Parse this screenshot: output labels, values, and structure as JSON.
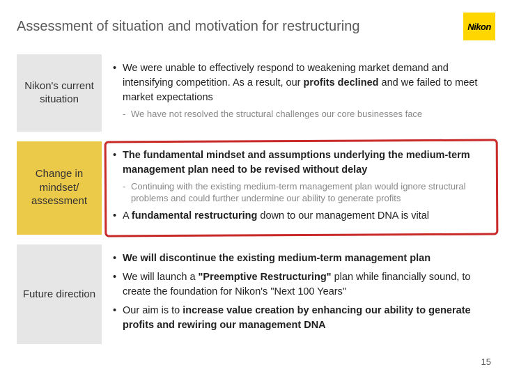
{
  "title": "Assessment of situation and motivation for restructuring",
  "logo_text": "Nikon",
  "page_number": "15",
  "colors": {
    "label_gray": "#e6e6e6",
    "label_yellow": "#ebc949",
    "highlight_border": "#c92a2a",
    "logo_bg": "#ffd600",
    "title_color": "#5a5a5a",
    "body_text": "#222222",
    "sub_text": "#888888"
  },
  "rows": [
    {
      "label": "Nikon's current situation",
      "label_style": "gray",
      "highlighted": false,
      "bullets": [
        {
          "pre": "We were unable to effectively respond to weakening market demand and intensifying competition. As a result, our ",
          "bold": "profits declined",
          "post": " and we failed to meet market expectations",
          "sub": "We have not resolved the structural challenges our core businesses face"
        }
      ]
    },
    {
      "label": "Change in mindset/ assessment",
      "label_style": "yellow",
      "highlighted": true,
      "bullets": [
        {
          "all_bold": "The fundamental mindset and assumptions underlying the medium-term management plan need to be revised without delay",
          "sub": "Continuing with the existing medium-term management plan would ignore structural problems and could further undermine our ability to generate profits"
        },
        {
          "pre": "A ",
          "bold": "fundamental restructuring",
          "post": " down to our management DNA is vital"
        }
      ]
    },
    {
      "label": "Future direction",
      "label_style": "gray",
      "highlighted": false,
      "bullets": [
        {
          "all_bold": "We will discontinue the existing medium-term management plan"
        },
        {
          "pre": "We will launch a ",
          "bold": "\"Preemptive Restructuring\"",
          "post": " plan while financially sound, to create the foundation for Nikon's \"Next 100 Years\""
        },
        {
          "pre": "Our aim is to ",
          "bold": "increase value creation by enhancing our ability to generate profits and rewiring our management DNA",
          "post": ""
        }
      ]
    }
  ]
}
